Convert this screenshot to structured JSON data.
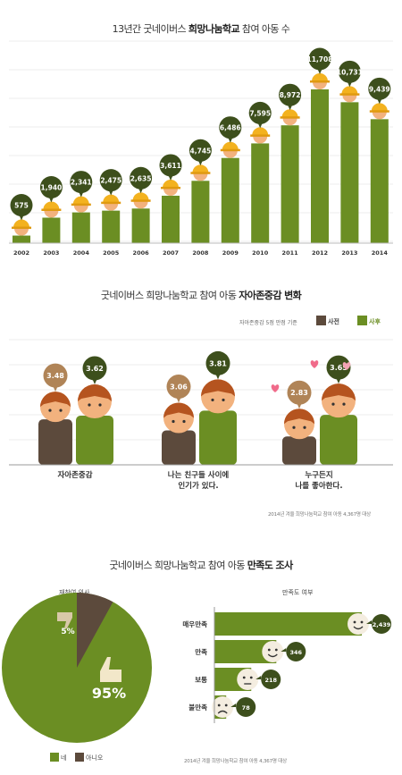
{
  "section1": {
    "title_plain": "13년간 굿네이버스 ",
    "title_bold": "희망나눔학교",
    "title_tail": " 참여 아동 수"
  },
  "section2": {
    "title_plain": "굿네이버스 희망나눔학교 참여 아동 ",
    "title_bold": "자아존중감 변화",
    "scale_note": "자아존중감 5점 만점 기준",
    "legend_before": "사전",
    "legend_after": "사후",
    "footnote": "2014년 겨울 희망나눔학교 참여 아동 4,367명 대상"
  },
  "section3": {
    "title_plain": "굿네이버스 희망나눔학교 참여 아동 ",
    "title_bold": "만족도 조사",
    "pie_title": "재참여 의사",
    "bar_title": "만족도 여부",
    "legend_yes": "네",
    "legend_no": "아니오",
    "footnote": "2014년 겨울 희망나눔학교 참여 아동 4,367명 대상"
  },
  "colors": {
    "green": "#6b8e23",
    "dark_green": "#3d4f1c",
    "brown": "#5c4a3c",
    "tan": "#b08457",
    "skin": "#f2b27e",
    "hair": "#b5541f",
    "helmet": "#f3b21f"
  },
  "chart_data": [
    {
      "type": "bar",
      "title": "13년간 굿네이버스 희망나눔학교 참여 아동 수",
      "categories": [
        "2002",
        "2003",
        "2004",
        "2005",
        "2006",
        "2007",
        "2008",
        "2009",
        "2010",
        "2011",
        "2012",
        "2013",
        "2014"
      ],
      "values": [
        575,
        1940,
        2341,
        2475,
        2635,
        3611,
        4745,
        6486,
        7595,
        8972,
        11708,
        10731,
        9439
      ],
      "labels": [
        "575",
        "1,940",
        "2,341",
        "2,475",
        "2,635",
        "3,611",
        "4,745",
        "6,486",
        "7,595",
        "8,972",
        "11,708",
        "10,731",
        "9,439"
      ]
    },
    {
      "type": "bar",
      "title": "굿네이버스 희망나눔학교 참여 아동 자아존중감 변화",
      "categories": [
        "자아존중감",
        "나는 친구들 사이에\n인기가 있다.",
        "누구든지\n나를 좋아한다."
      ],
      "series": [
        {
          "name": "사전",
          "values": [
            3.48,
            3.06,
            2.83
          ]
        },
        {
          "name": "사후",
          "values": [
            3.62,
            3.81,
            3.65
          ]
        }
      ],
      "ylim": [
        0,
        5
      ]
    },
    {
      "type": "pie",
      "title": "재참여 의사",
      "categories": [
        "네",
        "아니오"
      ],
      "values": [
        95,
        5
      ],
      "labels": [
        "95%",
        "5%"
      ]
    },
    {
      "type": "bar",
      "title": "만족도 여부",
      "categories": [
        "매우만족",
        "만족",
        "보통",
        "불만족"
      ],
      "values": [
        2439,
        346,
        218,
        78
      ],
      "labels": [
        "2,439",
        "346",
        "218",
        "78"
      ]
    }
  ]
}
